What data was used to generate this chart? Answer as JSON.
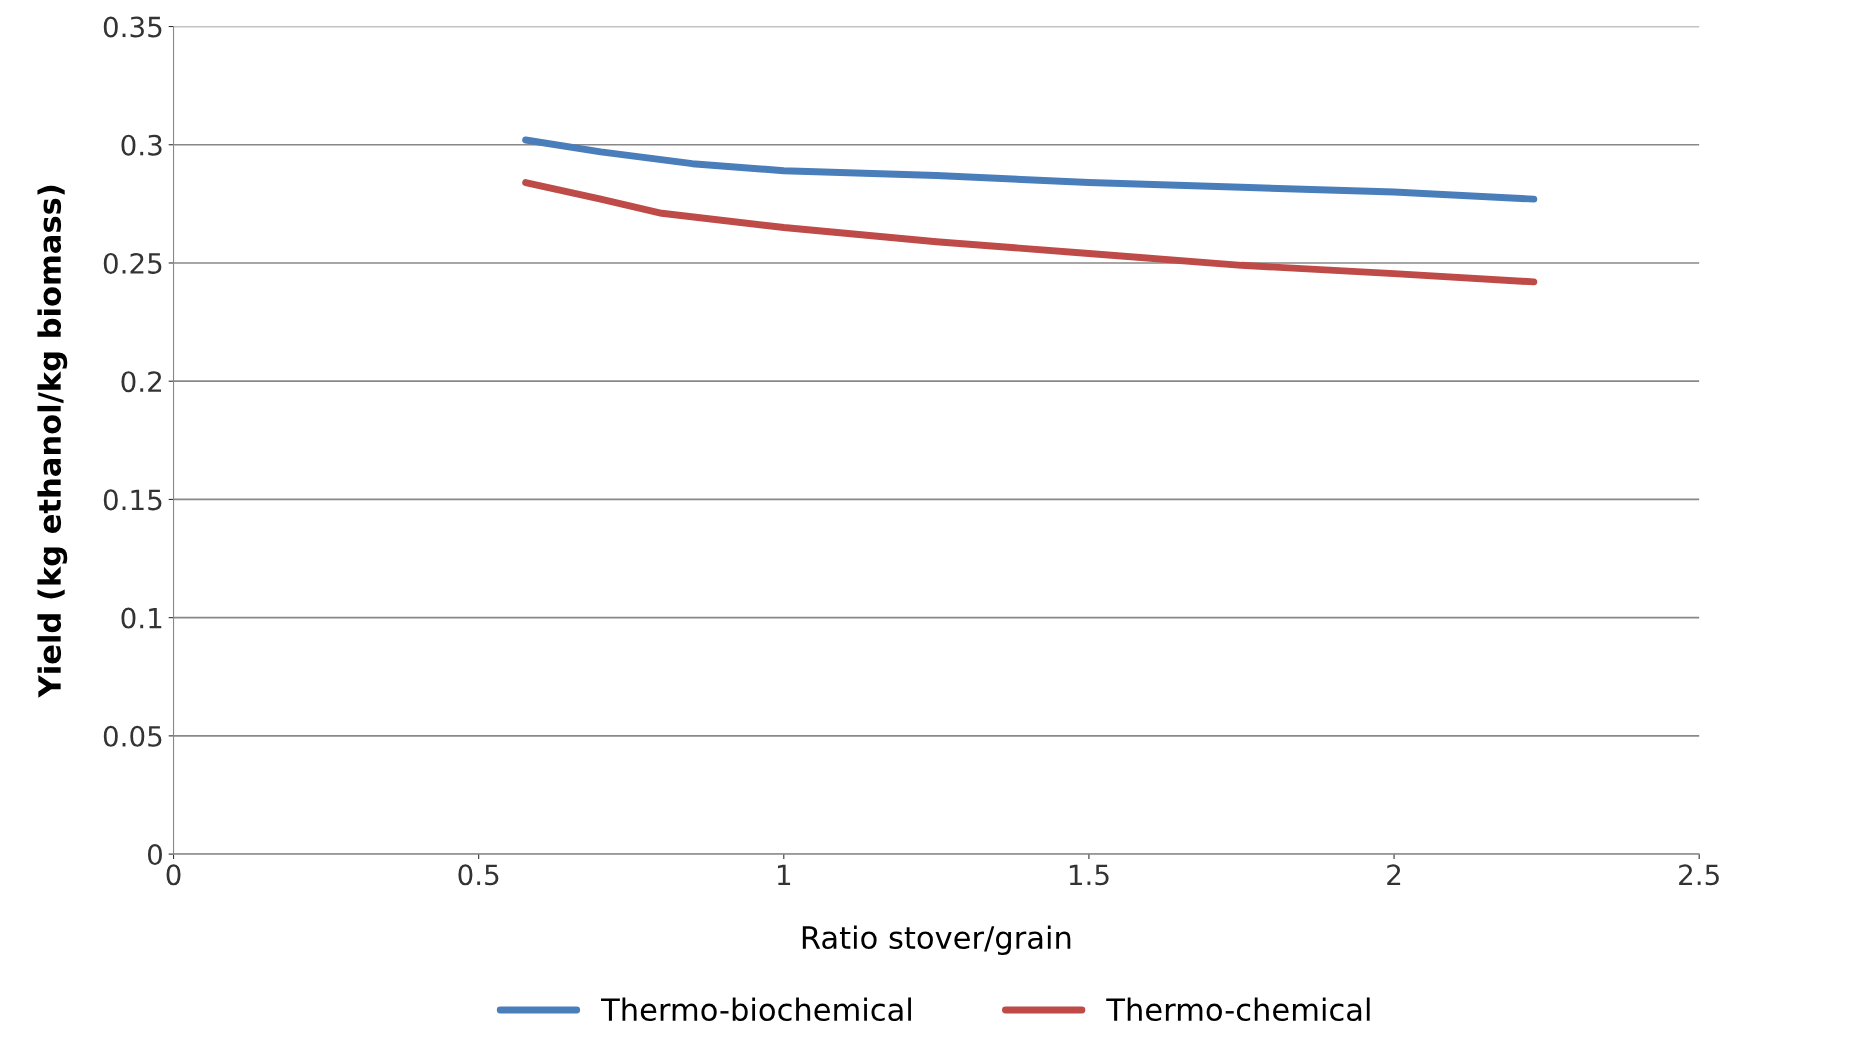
{
  "chart_data": {
    "type": "line",
    "xlabel": "Ratio stover/grain",
    "ylabel": "Yield (kg ethanol/kg biomass)",
    "xlim": [
      0,
      2.5
    ],
    "xticks": [
      0,
      0.5,
      1,
      1.5,
      2,
      2.5
    ],
    "ylim": [
      0,
      0.35
    ],
    "yticks": [
      0,
      0.05,
      0.1,
      0.15,
      0.2,
      0.25,
      0.3,
      0.35
    ],
    "grid": "y",
    "legend": "bottom",
    "marker": "none",
    "line_style": "solid",
    "series": [
      {
        "name": "Thermo-biochemical",
        "color": "#4a7ebb",
        "x": [
          0.577,
          0.7,
          0.85,
          1,
          1.25,
          1.5,
          1.75,
          2,
          2.229
        ],
        "values": [
          0.302,
          0.297,
          0.292,
          0.289,
          0.287,
          0.284,
          0.282,
          0.28,
          0.277
        ]
      },
      {
        "name": "Thermo-chemical",
        "color": "#be4b48",
        "x": [
          0.577,
          0.7,
          0.8,
          1,
          1.25,
          1.5,
          1.75,
          2,
          2.229
        ],
        "values": [
          0.284,
          0.277,
          0.271,
          0.265,
          0.259,
          0.254,
          0.249,
          0.2455,
          0.242
        ]
      }
    ]
  }
}
